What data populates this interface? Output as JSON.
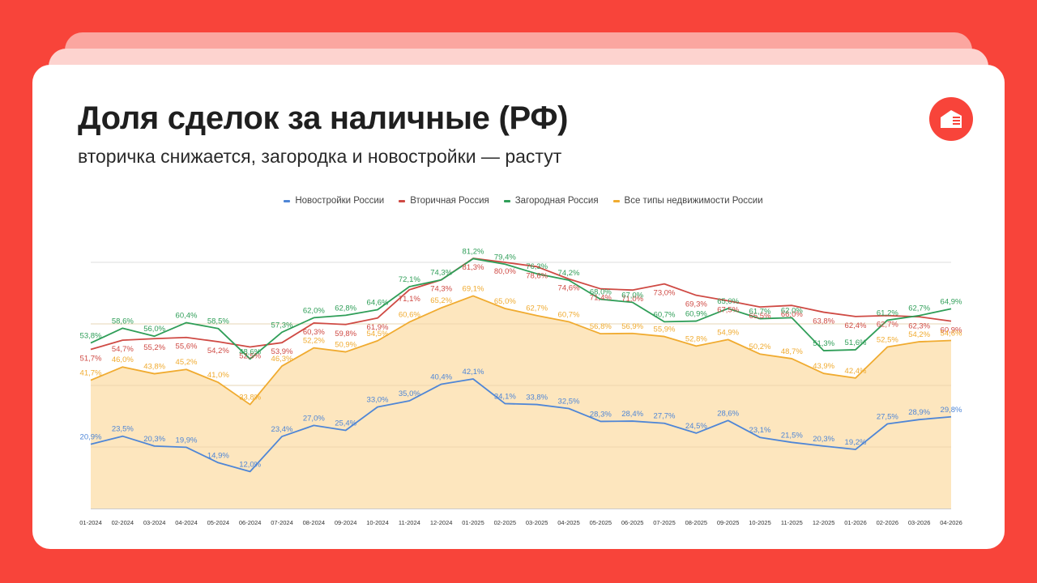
{
  "header": {
    "title": "Доля сделок за наличные (РФ)",
    "subtitle": "вторичка снижается, загородка и новостройки — растут",
    "logo_icon": "house-logo-icon"
  },
  "colors": {
    "background": "#f8443a",
    "novostroiki": "#4f86d6",
    "vtorichnaya": "#cf4a44",
    "zagorodnaya": "#2f9e58",
    "vse": "#f0ab30",
    "area_fill": "#fde6be"
  },
  "chart_data": {
    "type": "line",
    "categories": [
      "01-2024",
      "02-2024",
      "03-2024",
      "04-2024",
      "05-2024",
      "06-2024",
      "07-2024",
      "08-2024",
      "09-2024",
      "10-2024",
      "11-2024",
      "12-2024",
      "01-2025",
      "02-2025",
      "03-2025",
      "04-2025",
      "05-2025",
      "06-2025",
      "07-2025",
      "08-2025",
      "09-2025",
      "10-2025",
      "11-2025",
      "12-2025",
      "01-2026",
      "02-2026",
      "03-2026",
      "04-2026"
    ],
    "ylim": [
      0,
      100
    ],
    "legend_position": "top-center",
    "series": [
      {
        "name": "Новостройки России",
        "color": "#4f86d6",
        "values": [
          20.9,
          23.5,
          20.3,
          19.9,
          14.9,
          12.0,
          23.4,
          27.0,
          25.4,
          33.0,
          35.0,
          40.4,
          42.1,
          34.1,
          33.8,
          32.5,
          28.3,
          28.4,
          27.7,
          24.5,
          28.6,
          23.1,
          21.5,
          20.3,
          19.2,
          27.5,
          28.9,
          29.8
        ],
        "labels": [
          "20,9%",
          "23,5%",
          "20,3%",
          "19,9%",
          "14,9%",
          "12,0%",
          "23,4%",
          "27,0%",
          "25,4%",
          "33,0%",
          "35,0%",
          "40,4%",
          "42,1%",
          "34,1%",
          "33,8%",
          "32,5%",
          "28,3%",
          "28,4%",
          "27,7%",
          "24,5%",
          "28,6%",
          "23,1%",
          "21,5%",
          "20,3%",
          "19,2%",
          "27,5%",
          "28,9%",
          "29,8%"
        ]
      },
      {
        "name": "Вторичная Россия",
        "color": "#cf4a44",
        "values": [
          51.7,
          54.7,
          55.2,
          55.6,
          54.2,
          52.5,
          53.9,
          60.3,
          59.8,
          61.9,
          71.1,
          74.3,
          81.3,
          80.0,
          78.6,
          74.6,
          71.4,
          71.0,
          73.0,
          69.3,
          67.5,
          65.5,
          66.0,
          63.8,
          62.4,
          62.7,
          62.3,
          60.9
        ],
        "labels": [
          "51,7%",
          "54,7%",
          "55,2%",
          "55,6%",
          "54,2%",
          "52,5%",
          "53,9%",
          "60,3%",
          "59,8%",
          "61,9%",
          "71,1%",
          "74,3%",
          "81,3%",
          "80,0%",
          "78,6%",
          "74,6%",
          "71,4%",
          "71,0%",
          "73,0%",
          "69,3%",
          "67,5%",
          "65,5%",
          "66,0%",
          "63,8%",
          "62,4%",
          "62,7%",
          "62,3%",
          "60,9%"
        ]
      },
      {
        "name": "Загородная Россия",
        "color": "#2f9e58",
        "values": [
          53.8,
          58.6,
          56.0,
          60.4,
          58.5,
          48.6,
          57.3,
          62.0,
          62.8,
          64.6,
          72.1,
          74.3,
          81.2,
          79.4,
          76.3,
          74.2,
          68.0,
          67.0,
          60.7,
          60.9,
          65.0,
          61.7,
          62.0,
          51.3,
          51.6,
          61.2,
          62.7,
          64.9
        ],
        "labels": [
          "53,8%",
          "58,6%",
          "56,0%",
          "60,4%",
          "58,5%",
          "48,6%",
          "57,3%",
          "62,0%",
          "62,8%",
          "64,6%",
          "72,1%",
          "74,3%",
          "81,2%",
          "79,4%",
          "76,3%",
          "74,2%",
          "68,0%",
          "67,0%",
          "60,7%",
          "60,9%",
          "65,0%",
          "61,7%",
          "62,0%",
          "51,3%",
          "51,6%",
          "61,2%",
          "62,7%",
          "64,9%"
        ]
      },
      {
        "name": "Все типы недвижимости России",
        "color": "#f0ab30",
        "values": [
          41.7,
          46.0,
          43.8,
          45.2,
          41.0,
          33.8,
          46.3,
          52.2,
          50.9,
          54.5,
          60.6,
          65.2,
          69.1,
          65.0,
          62.7,
          60.7,
          56.8,
          56.9,
          55.9,
          52.8,
          54.9,
          50.2,
          48.7,
          43.9,
          42.4,
          52.5,
          54.2,
          54.6
        ],
        "labels": [
          "41,7%",
          "46,0%",
          "43,8%",
          "45,2%",
          "41,0%",
          "33,8%",
          "46,3%",
          "52,2%",
          "50,9%",
          "54,5%",
          "60,6%",
          "65,2%",
          "69,1%",
          "65,0%",
          "62,7%",
          "60,7%",
          "56,8%",
          "56,9%",
          "55,9%",
          "52,8%",
          "54,9%",
          "50,2%",
          "48,7%",
          "43,9%",
          "42,4%",
          "52,5%",
          "54,2%",
          "54,6%"
        ]
      }
    ]
  }
}
